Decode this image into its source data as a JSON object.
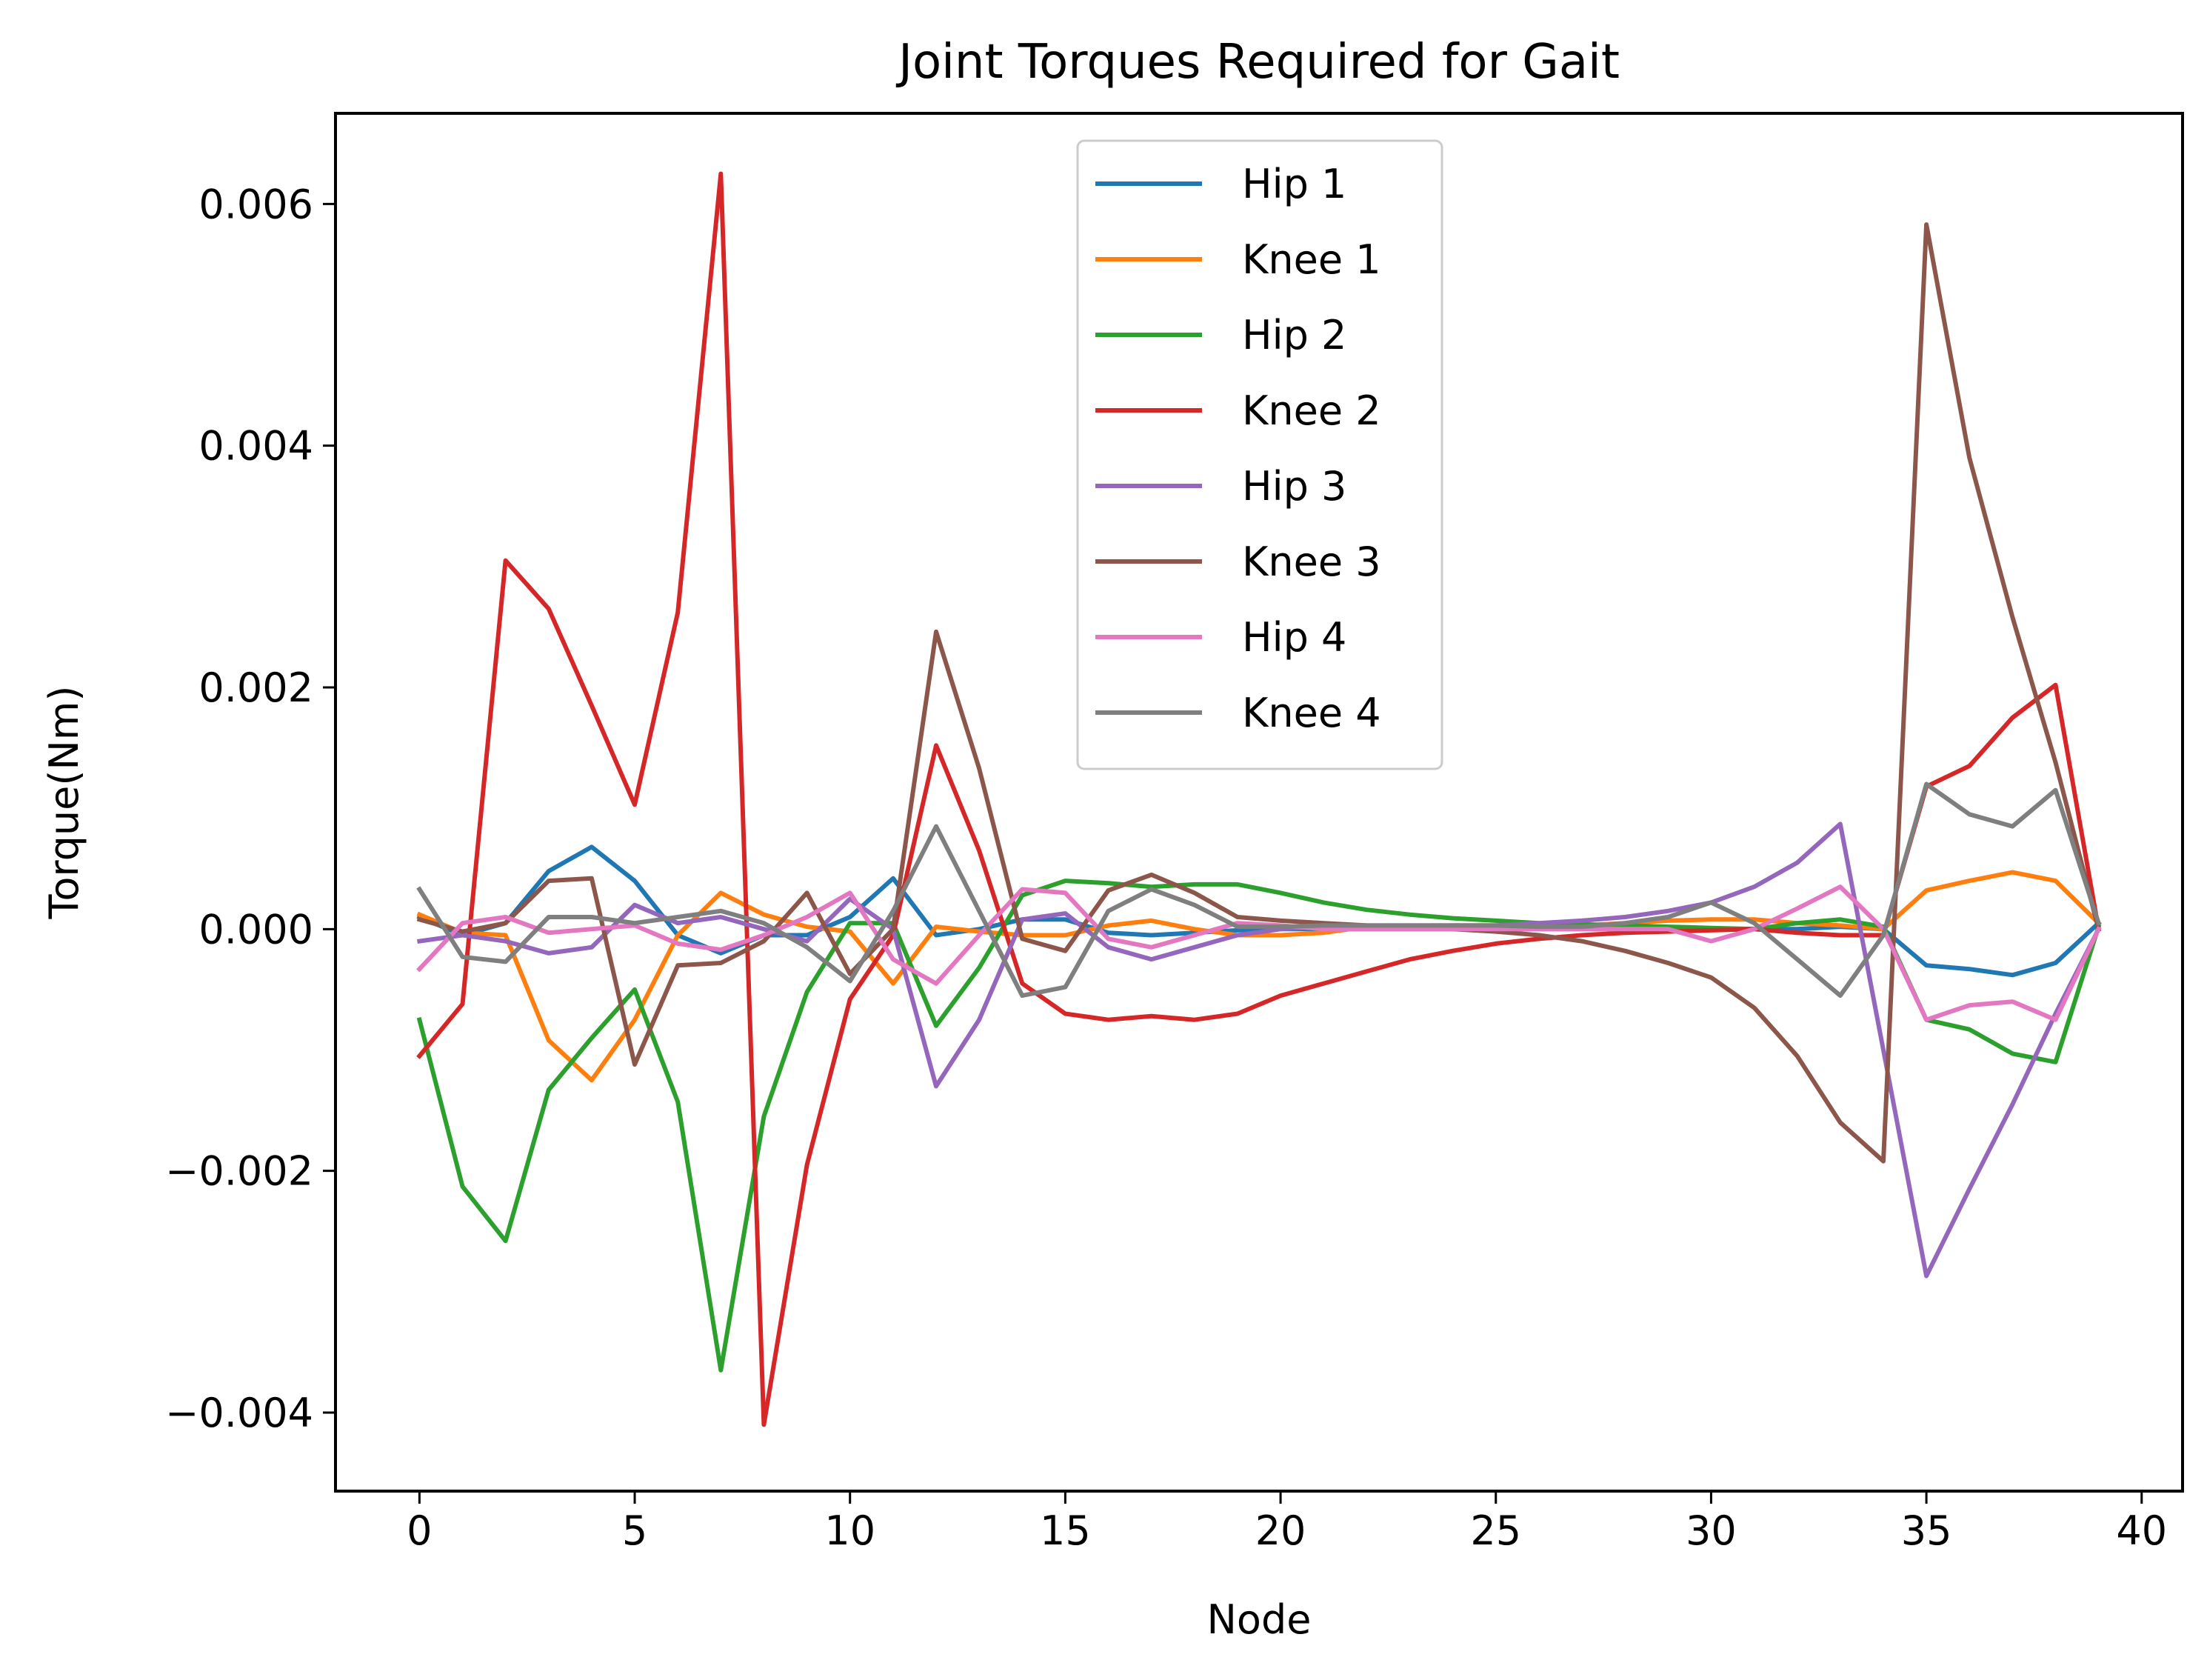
{
  "chart_data": {
    "type": "line",
    "title": "Joint Torques Required for Gait",
    "xlabel": "Node",
    "ylabel": "Torque(Nm)",
    "xlim": [
      -1.95,
      40.95
    ],
    "ylim": [
      -0.00465,
      0.00675
    ],
    "xticks": [
      0,
      5,
      10,
      15,
      20,
      25,
      30,
      35,
      40
    ],
    "xtick_labels": [
      "0",
      "5",
      "10",
      "15",
      "20",
      "25",
      "30",
      "35",
      "40"
    ],
    "yticks": [
      -0.004,
      -0.002,
      0.0,
      0.002,
      0.004,
      0.006
    ],
    "ytick_labels": [
      "−0.004",
      "−0.002",
      "0.000",
      "0.002",
      "0.004",
      "0.006"
    ],
    "grid": false,
    "legend_position": "upper-center",
    "x": [
      0,
      1,
      2,
      3,
      4,
      5,
      6,
      7,
      8,
      9,
      10,
      11,
      12,
      13,
      14,
      15,
      16,
      17,
      18,
      19,
      20,
      21,
      22,
      23,
      24,
      25,
      26,
      27,
      28,
      29,
      30,
      31,
      32,
      33,
      34,
      35,
      36,
      37,
      38,
      39
    ],
    "series": [
      {
        "name": "Hip 1",
        "color": "#1f77b4",
        "values": [
          0.0001,
          -5e-05,
          5e-05,
          0.00048,
          0.00068,
          0.0004,
          -5e-05,
          -0.0002,
          -5e-05,
          -5e-05,
          0.0001,
          0.00042,
          -5e-05,
          0.0,
          8e-05,
          8e-05,
          -3e-05,
          -5e-05,
          -3e-05,
          -1e-05,
          0.0,
          0.0,
          0.0,
          0.0,
          0.0,
          0.0,
          0.0,
          0.0,
          0.0,
          0.0,
          0.0,
          0.0,
          0.0,
          2e-05,
          0.0,
          -0.0003,
          -0.00033,
          -0.00038,
          -0.00028,
          5e-05
        ]
      },
      {
        "name": "Knee 1",
        "color": "#ff7f0e",
        "values": [
          0.00012,
          -3e-05,
          -5e-05,
          -0.00092,
          -0.00125,
          -0.00075,
          -5e-05,
          0.0003,
          0.00012,
          2e-05,
          -2e-05,
          -0.00045,
          2e-05,
          -2e-05,
          -5e-05,
          -5e-05,
          3e-05,
          7e-05,
          0.0,
          -5e-05,
          -5e-05,
          -3e-05,
          2e-05,
          2e-05,
          3e-05,
          3e-05,
          3e-05,
          3e-05,
          5e-05,
          7e-05,
          8e-05,
          8e-05,
          5e-05,
          3e-05,
          0.0,
          0.00032,
          0.0004,
          0.00047,
          0.0004,
          5e-05
        ]
      },
      {
        "name": "Hip 2",
        "color": "#2ca02c",
        "values": [
          -0.00075,
          -0.00213,
          -0.00258,
          -0.00133,
          -0.0009,
          -0.0005,
          -0.00143,
          -0.00365,
          -0.00155,
          -0.00052,
          5e-05,
          5e-05,
          -0.0008,
          -0.00032,
          0.00028,
          0.0004,
          0.00038,
          0.00035,
          0.00037,
          0.00037,
          0.0003,
          0.00022,
          0.00016,
          0.00012,
          9e-05,
          7e-05,
          5e-05,
          4e-05,
          3e-05,
          2e-05,
          1e-05,
          0.0,
          5e-05,
          8e-05,
          2e-05,
          -0.00075,
          -0.00083,
          -0.00103,
          -0.0011,
          2e-05
        ]
      },
      {
        "name": "Knee 2",
        "color": "#d62728",
        "values": [
          -0.00105,
          -0.00062,
          0.00305,
          0.00265,
          0.00185,
          0.00103,
          0.00262,
          0.00625,
          -0.0041,
          -0.00195,
          -0.00058,
          -5e-05,
          0.00152,
          0.00065,
          -0.00045,
          -0.0007,
          -0.00075,
          -0.00072,
          -0.00075,
          -0.0007,
          -0.00055,
          -0.00045,
          -0.00035,
          -0.00025,
          -0.00018,
          -0.00012,
          -8e-05,
          -5e-05,
          -3e-05,
          -2e-05,
          -1e-05,
          0.0,
          -3e-05,
          -5e-05,
          -5e-05,
          0.00118,
          0.00135,
          0.00175,
          0.00202,
          0.0
        ]
      },
      {
        "name": "Hip 3",
        "color": "#9467bd",
        "values": [
          -0.0001,
          -5e-05,
          -0.0001,
          -0.0002,
          -0.00015,
          0.0002,
          5e-05,
          0.0001,
          0.0,
          -0.0001,
          0.00025,
          0.0,
          -0.0013,
          -0.00075,
          8e-05,
          0.00013,
          -0.00015,
          -0.00025,
          -0.00015,
          -5e-05,
          0.0,
          2e-05,
          3e-05,
          3e-05,
          3e-05,
          3e-05,
          5e-05,
          7e-05,
          0.0001,
          0.00015,
          0.00022,
          0.00035,
          0.00055,
          0.00087,
          -0.001,
          -0.00287,
          -0.00215,
          -0.00145,
          -0.0007,
          0.0
        ]
      },
      {
        "name": "Knee 3",
        "color": "#8c564b",
        "values": [
          8e-05,
          -2e-05,
          5e-05,
          0.0004,
          0.00042,
          -0.00112,
          -0.0003,
          -0.00028,
          -0.0001,
          0.0003,
          -0.00037,
          0.0,
          0.00246,
          0.00133,
          -8e-05,
          -0.00018,
          0.00032,
          0.00045,
          0.0003,
          0.0001,
          7e-05,
          5e-05,
          3e-05,
          2e-05,
          0.0,
          -2e-05,
          -5e-05,
          -0.0001,
          -0.00018,
          -0.00028,
          -0.0004,
          -0.00065,
          -0.00105,
          -0.0016,
          -0.00192,
          0.00583,
          0.0039,
          0.00258,
          0.00138,
          0.0
        ]
      },
      {
        "name": "Hip 4",
        "color": "#e377c2",
        "values": [
          -0.00033,
          5e-05,
          0.0001,
          -3e-05,
          0.0,
          3e-05,
          -0.00012,
          -0.00017,
          -5e-05,
          0.0001,
          0.0003,
          -0.00025,
          -0.00045,
          -5e-05,
          0.00033,
          0.0003,
          -8e-05,
          -0.00015,
          -5e-05,
          5e-05,
          3e-05,
          0.0,
          0.0,
          0.0,
          0.0,
          0.0,
          0.0,
          0.0,
          0.0,
          0.0,
          -0.0001,
          0.0,
          0.00017,
          0.00035,
          0.0,
          -0.00075,
          -0.00063,
          -0.0006,
          -0.00075,
          0.0
        ]
      },
      {
        "name": "Knee 4",
        "color": "#7f7f7f",
        "values": [
          0.00033,
          -0.00023,
          -0.00027,
          0.0001,
          0.0001,
          5e-05,
          0.0001,
          0.00015,
          5e-05,
          -0.00015,
          -0.00043,
          0.00015,
          0.00085,
          0.00015,
          -0.00055,
          -0.00048,
          0.00015,
          0.00033,
          0.0002,
          2e-05,
          2e-05,
          3e-05,
          3e-05,
          3e-05,
          3e-05,
          3e-05,
          2e-05,
          2e-05,
          5e-05,
          0.0001,
          0.00022,
          5e-05,
          -0.00025,
          -0.00055,
          -5e-05,
          0.0012,
          0.00095,
          0.00085,
          0.00115,
          5e-05
        ]
      }
    ]
  }
}
